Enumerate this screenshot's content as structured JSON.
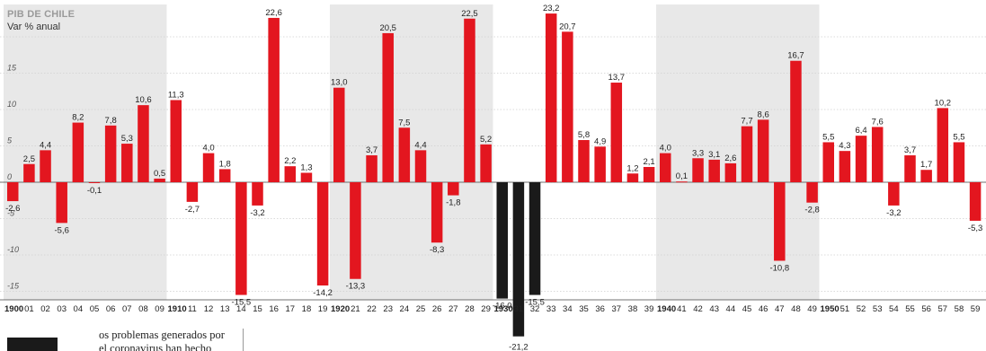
{
  "chart_data": {
    "type": "bar",
    "title": "PIB DE CHILE",
    "ylabel": "Var % anual",
    "ylim": [
      -16,
      23.2
    ],
    "yticks": [
      -15,
      -10,
      -5,
      0,
      5,
      10,
      15
    ],
    "grid": true,
    "categories": [
      "1900",
      "01",
      "02",
      "03",
      "04",
      "05",
      "06",
      "07",
      "08",
      "09",
      "1910",
      "11",
      "12",
      "13",
      "14",
      "15",
      "16",
      "17",
      "18",
      "19",
      "1920",
      "21",
      "22",
      "23",
      "24",
      "25",
      "26",
      "27",
      "28",
      "29",
      "1930",
      "31",
      "32",
      "33",
      "34",
      "35",
      "36",
      "37",
      "38",
      "39",
      "1940",
      "41",
      "42",
      "43",
      "44",
      "45",
      "46",
      "47",
      "48",
      "49",
      "1950",
      "51",
      "52",
      "53",
      "54",
      "55",
      "56",
      "57",
      "58",
      "59"
    ],
    "values": [
      -2.6,
      2.5,
      4.4,
      -5.6,
      8.2,
      -0.1,
      7.8,
      5.3,
      10.6,
      0.5,
      11.3,
      -2.7,
      4.0,
      1.8,
      -15.5,
      -3.2,
      22.6,
      2.2,
      1.3,
      -14.2,
      13.0,
      -13.3,
      3.7,
      20.5,
      7.5,
      4.4,
      -8.3,
      -1.8,
      22.5,
      5.2,
      -16.0,
      -21.2,
      -15.5,
      23.2,
      20.7,
      5.8,
      4.9,
      13.7,
      1.2,
      2.1,
      4.0,
      0.1,
      3.3,
      3.1,
      2.6,
      7.7,
      8.6,
      -10.8,
      16.7,
      -2.8,
      5.5,
      4.3,
      6.4,
      7.6,
      -3.2,
      3.7,
      1.7,
      10.2,
      5.5,
      -5.3
    ],
    "value_labels": [
      "-2,6",
      "2,5",
      "4,4",
      "-5,6",
      "8,2",
      "-0,1",
      "7,8",
      "5,3",
      "10,6",
      "0,5",
      "11,3",
      "-2,7",
      "4,0",
      "1,8",
      "-15,5",
      "-3,2",
      "22,6",
      "2,2",
      "1,3",
      "-14,2",
      "13,0",
      "-13,3",
      "3,7",
      "20,5",
      "7,5",
      "4,4",
      "-8,3",
      "-1,8",
      "22,5",
      "5,2",
      "-16,0",
      "-21,2",
      "-15,5",
      "23,2",
      "20,7",
      "5,8",
      "4,9",
      "13,7",
      "1,2",
      "2,1",
      "4,0",
      "0,1",
      "3,3",
      "3,1",
      "2,6",
      "7,7",
      "8,6",
      "-10,8",
      "16,7",
      "-2,8",
      "5,5",
      "4,3",
      "6,4",
      "7,6",
      "-3,2",
      "3,7",
      "1,7",
      "10,2",
      "5,5",
      "-5,3"
    ],
    "decade_starts": [
      "1900",
      "1910",
      "1920",
      "1930",
      "1940",
      "1950"
    ],
    "highlight_series": {
      "categories": [
        "1930",
        "31",
        "32"
      ],
      "color": "#1a1a1a"
    },
    "colors": {
      "bar": "#e3161f",
      "highlight": "#1a1a1a",
      "decade_band": "#e8e8e8",
      "grid": "#cfcfcf"
    }
  },
  "article": {
    "lines": [
      "os problemas generados por",
      "el coronavirus han hecho"
    ]
  }
}
